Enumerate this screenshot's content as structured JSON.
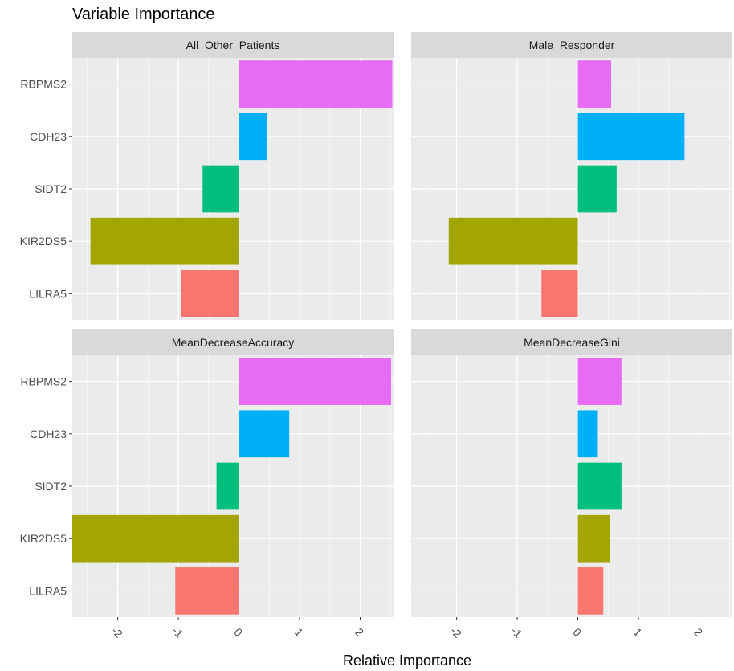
{
  "chart_data": {
    "type": "bar",
    "orientation": "horizontal",
    "layout": "facet_wrap_2x2",
    "title": "Variable Importance",
    "xlabel": "Relative Importance",
    "ylabel": "",
    "xlim": [
      -2.75,
      2.55
    ],
    "xticks": [
      -2,
      -1,
      0,
      1,
      2
    ],
    "xtick_labels": [
      "-2",
      "-1",
      "0",
      "1",
      "2"
    ],
    "categories": [
      "RBPMS2",
      "CDH23",
      "SIDT2",
      "KIR2DS5",
      "LILRA5"
    ],
    "colors": {
      "RBPMS2": "#e76bf3",
      "CDH23": "#00b0f6",
      "SIDT2": "#00bf7d",
      "KIR2DS5": "#a3a500",
      "LILRA5": "#f8766d"
    },
    "grid": true,
    "legend": "none",
    "panel_background": "#ebebeb",
    "strip_background": "#d9d9d9",
    "facets": [
      {
        "name": "All_Other_Patients",
        "values": [
          2.53,
          0.47,
          -0.6,
          -2.45,
          -0.95
        ]
      },
      {
        "name": "Male_Responder",
        "values": [
          0.55,
          1.76,
          0.64,
          -2.13,
          -0.6
        ]
      },
      {
        "name": "MeanDecreaseAccuracy",
        "values": [
          2.51,
          0.83,
          -0.37,
          -2.75,
          -1.05
        ]
      },
      {
        "name": "MeanDecreaseGini",
        "values": [
          0.72,
          0.33,
          0.72,
          0.53,
          0.42
        ]
      }
    ]
  }
}
